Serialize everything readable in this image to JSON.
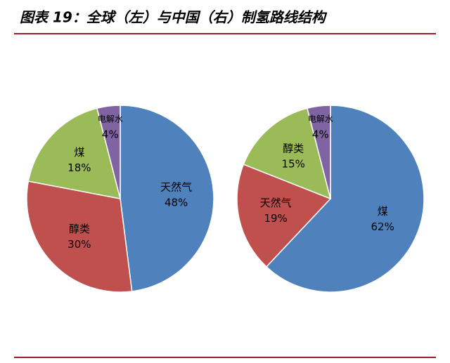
{
  "title": "图表 19：全球（左）与中国（右）制氢路线结构",
  "chart_data": [
    {
      "type": "pie",
      "categories": [
        "天然气",
        "醇类",
        "煤",
        "电解水"
      ],
      "values": [
        48,
        30,
        18,
        4
      ],
      "value_labels": [
        "48%",
        "30%",
        "18%",
        "4%"
      ],
      "colors": [
        "#4f81bd",
        "#c0504d",
        "#9bbb59",
        "#8064a2"
      ]
    },
    {
      "type": "pie",
      "categories": [
        "煤",
        "天然气",
        "醇类",
        "电解水"
      ],
      "values": [
        62,
        19,
        15,
        4
      ],
      "value_labels": [
        "62%",
        "19%",
        "15%",
        "4%"
      ],
      "colors": [
        "#4f81bd",
        "#c0504d",
        "#9bbb59",
        "#8064a2"
      ]
    }
  ]
}
